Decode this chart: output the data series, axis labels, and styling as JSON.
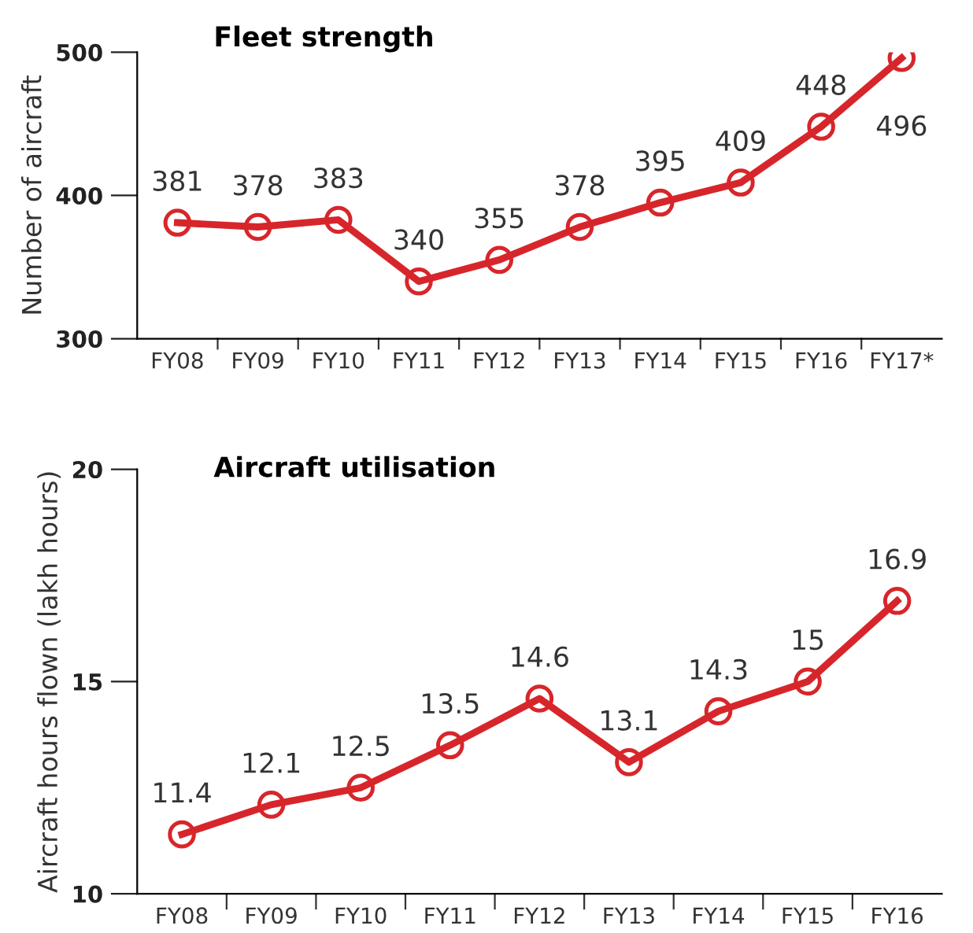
{
  "chart_data": [
    {
      "type": "line",
      "title": "Fleet strength",
      "ylabel": "Number of aircraft",
      "categories": [
        "FY08",
        "FY09",
        "FY10",
        "FY11",
        "FY12",
        "FY13",
        "FY14",
        "FY15",
        "FY16",
        "FY17*"
      ],
      "series": [
        {
          "color": "#d7262b",
          "values": [
            381,
            378,
            383,
            340,
            355,
            378,
            395,
            409,
            448,
            496
          ]
        }
      ],
      "ylim": [
        300,
        500
      ],
      "yticks": [
        300,
        400,
        500
      ],
      "data_labels": true,
      "marker": "circle",
      "line_style": "solid",
      "grid": false,
      "legend": false
    },
    {
      "type": "line",
      "title": "Aircraft utilisation",
      "ylabel": "Aircraft hours flown (lakh hours)",
      "categories": [
        "FY08",
        "FY09",
        "FY10",
        "FY11",
        "FY12",
        "FY13",
        "FY14",
        "FY15",
        "FY16"
      ],
      "series": [
        {
          "color": "#d7262b",
          "values": [
            11.4,
            12.1,
            12.5,
            13.5,
            14.6,
            13.1,
            14.3,
            15,
            16.9
          ]
        }
      ],
      "ylim": [
        10,
        20
      ],
      "yticks": [
        10,
        15,
        20
      ],
      "data_labels": true,
      "marker": "circle",
      "line_style": "solid",
      "grid": false,
      "legend": false
    }
  ]
}
